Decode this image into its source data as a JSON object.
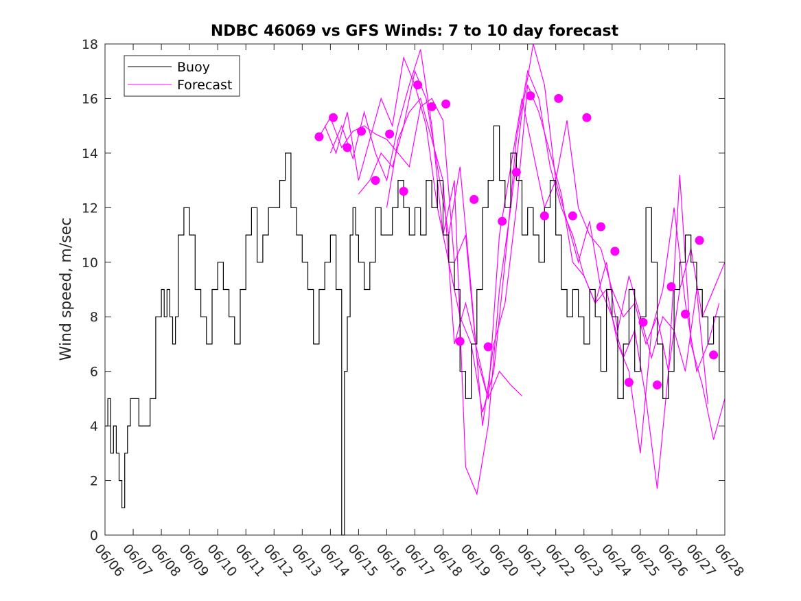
{
  "chart_data": {
    "type": "line",
    "title": "NDBC 46069 vs GFS Winds: 7 to 10 day forecast",
    "xlabel": "",
    "ylabel": "Wind speed, m/sec",
    "x_ticks": [
      "06/06",
      "06/07",
      "06/08",
      "06/09",
      "06/10",
      "06/11",
      "06/12",
      "06/13",
      "06/14",
      "06/15",
      "06/16",
      "06/17",
      "06/18",
      "06/19",
      "06/20",
      "06/21",
      "06/22",
      "06/23",
      "06/24",
      "06/25",
      "06/26",
      "06/27",
      "06/28"
    ],
    "xlim_days": [
      0,
      22
    ],
    "ylim": [
      0,
      18
    ],
    "y_ticks": [
      0,
      2,
      4,
      6,
      8,
      10,
      12,
      14,
      16,
      18
    ],
    "legend_position": "top-left",
    "colors": {
      "buoy": "#000000",
      "forecast": "#ff00ff",
      "axis": "#262626"
    },
    "series": [
      {
        "name": "Buoy",
        "style": "step-line",
        "x_days": [
          0.0,
          0.1,
          0.2,
          0.3,
          0.4,
          0.5,
          0.6,
          0.7,
          0.8,
          0.9,
          1.0,
          1.2,
          1.4,
          1.6,
          1.8,
          2.0,
          2.1,
          2.2,
          2.3,
          2.4,
          2.5,
          2.6,
          2.8,
          3.0,
          3.2,
          3.4,
          3.6,
          3.8,
          4.0,
          4.2,
          4.4,
          4.6,
          4.8,
          5.0,
          5.2,
          5.4,
          5.6,
          5.8,
          6.0,
          6.2,
          6.4,
          6.6,
          6.8,
          7.0,
          7.2,
          7.4,
          7.6,
          7.8,
          8.0,
          8.2,
          8.4,
          8.5,
          8.6,
          8.7,
          8.8,
          8.9,
          9.0,
          9.2,
          9.4,
          9.6,
          9.8,
          10.0,
          10.2,
          10.4,
          10.6,
          10.8,
          11.0,
          11.2,
          11.4,
          11.6,
          11.8,
          12.0,
          12.2,
          12.4,
          12.6,
          12.8,
          13.0,
          13.2,
          13.4,
          13.6,
          13.8,
          14.0,
          14.2,
          14.4,
          14.6,
          14.8,
          15.0,
          15.2,
          15.4,
          15.6,
          15.8,
          16.0,
          16.2,
          16.4,
          16.6,
          16.8,
          17.0,
          17.2,
          17.4,
          17.6,
          17.8,
          18.0,
          18.2,
          18.4,
          18.6,
          18.8,
          19.0,
          19.2,
          19.4,
          19.6,
          19.8,
          20.0,
          20.2,
          20.4,
          20.6,
          20.8,
          21.0,
          21.2,
          21.4,
          21.6,
          21.8,
          22.0
        ],
        "values": [
          4,
          5,
          3,
          4,
          3,
          2,
          1,
          3,
          4,
          5,
          5,
          4,
          4,
          5,
          8,
          9,
          8,
          9,
          8,
          7,
          8,
          11,
          12,
          11,
          9,
          8,
          7,
          9,
          10,
          9,
          8,
          7,
          9,
          11,
          12,
          10,
          11,
          12,
          12,
          13,
          14,
          12,
          11,
          10,
          9,
          7,
          9,
          10,
          11,
          9,
          0,
          6,
          8,
          11,
          12,
          11,
          10,
          9,
          10,
          12,
          11,
          11,
          12,
          13,
          12,
          11,
          12,
          11,
          13,
          12,
          13,
          11,
          10,
          9,
          6,
          5,
          7,
          9,
          12,
          13,
          15,
          13,
          12,
          14,
          13,
          11,
          12,
          11,
          10,
          12,
          13,
          11,
          9,
          8,
          9,
          8,
          7,
          9,
          8,
          6,
          9,
          8,
          5,
          7,
          9,
          6,
          8,
          12,
          10,
          7,
          5,
          6,
          9,
          10,
          11,
          10,
          9,
          8,
          7,
          8,
          6,
          9
        ]
      },
      {
        "name": "Forecast",
        "style": "multiple-ensemble-lines",
        "runs": [
          {
            "x_days": [
              7.6,
              8.0,
              8.4,
              8.8,
              9.2,
              9.6,
              10.0,
              10.4,
              10.8,
              11.2,
              11.6,
              12.0,
              12.4,
              12.8,
              13.2,
              13.6,
              14.0,
              14.4,
              14.8,
              15.2,
              15.6,
              16.0,
              16.4,
              16.8,
              17.2,
              17.6,
              18.0,
              18.4,
              18.8,
              19.2,
              19.6,
              20.0,
              20.4,
              20.8,
              21.2,
              21.6,
              22.0
            ],
            "values": [
              14.6,
              15.3,
              14.2,
              14.8,
              15.0,
              14.7,
              14.5,
              14.0,
              13.5,
              15.7,
              16.0,
              15.2,
              10.0,
              11.0,
              6.5,
              5.0,
              11.0,
              13.5,
              16.0,
              14.0,
              12.0,
              13.0,
              15.2,
              12.0,
              11.0,
              10.5,
              9.0,
              8.0,
              8.5,
              7.0,
              8.0,
              6.0,
              9.0,
              10.5,
              8.0,
              9.0,
              10.0
            ]
          },
          {
            "x_days": [
              7.8,
              8.2,
              8.6,
              9.0,
              9.4,
              9.8,
              10.2,
              10.6,
              11.0,
              11.4,
              11.8,
              12.2,
              12.6,
              13.0,
              13.4,
              13.8,
              14.2,
              14.6,
              15.0,
              15.4,
              15.8,
              16.2,
              16.6,
              17.0,
              17.4,
              17.8,
              18.2,
              18.6,
              19.0,
              19.4,
              19.8,
              20.2,
              20.6,
              21.0,
              21.4,
              21.8
            ],
            "values": [
              15.0,
              14.0,
              15.5,
              13.0,
              14.5,
              16.0,
              15.0,
              17.5,
              16.5,
              15.0,
              12.0,
              10.0,
              8.0,
              7.0,
              4.5,
              6.0,
              10.0,
              14.5,
              17.0,
              16.0,
              13.5,
              12.0,
              11.0,
              9.5,
              8.5,
              9.0,
              7.0,
              6.0,
              3.0,
              7.5,
              9.0,
              12.0,
              8.5,
              6.0,
              7.0,
              8.5
            ]
          },
          {
            "x_days": [
              8.0,
              8.4,
              8.8,
              9.2,
              9.6,
              10.0,
              10.4,
              10.8,
              11.2,
              11.6,
              12.0,
              12.4,
              12.8,
              13.2,
              13.6,
              14.0,
              14.4,
              14.8,
              15.2,
              15.6,
              16.0,
              16.4,
              16.8,
              17.2,
              17.6,
              18.0,
              18.4,
              18.8,
              19.2,
              19.6,
              20.0,
              20.4,
              20.8,
              21.2,
              21.6,
              22.0
            ],
            "values": [
              14.0,
              15.0,
              13.8,
              15.5,
              14.0,
              13.0,
              15.0,
              16.5,
              17.8,
              15.0,
              11.0,
              13.0,
              2.5,
              1.5,
              4.0,
              9.0,
              12.0,
              15.5,
              18.0,
              16.5,
              13.0,
              11.5,
              10.0,
              11.5,
              9.0,
              8.0,
              6.5,
              7.5,
              5.0,
              1.7,
              6.0,
              13.2,
              7.0,
              5.5,
              3.5,
              5.0
            ]
          },
          {
            "x_days": [
              9.0,
              9.4,
              9.8,
              10.2,
              10.6,
              11.0,
              11.4,
              11.8,
              12.2,
              12.6,
              13.0,
              13.4,
              13.8,
              14.2,
              14.6,
              15.0,
              15.4,
              15.8,
              16.2,
              16.6,
              17.0,
              17.4,
              17.8,
              18.2,
              18.6,
              19.0,
              19.4,
              19.8,
              20.2,
              20.6,
              21.0,
              21.4
            ],
            "values": [
              12.5,
              13.0,
              14.0,
              13.5,
              15.0,
              17.0,
              16.0,
              13.5,
              11.0,
              13.5,
              9.0,
              4.0,
              7.0,
              8.5,
              12.0,
              16.5,
              15.5,
              14.0,
              12.5,
              10.0,
              9.5,
              8.5,
              10.0,
              7.5,
              9.5,
              8.0,
              6.5,
              8.0,
              7.5,
              6.0,
              9.0,
              4.8
            ]
          },
          {
            "x_days": [
              10.0,
              10.4,
              10.8,
              11.2,
              11.6,
              12.0,
              12.4,
              12.8,
              13.2,
              13.6,
              14.0,
              14.4,
              14.8
            ],
            "values": [
              12.0,
              14.5,
              15.5,
              16.0,
              14.5,
              13.0,
              7.0,
              8.5,
              6.8,
              5.0,
              6.0,
              5.5,
              5.1
            ]
          }
        ]
      }
    ],
    "forecast_markers": {
      "x_days": [
        7.6,
        8.1,
        8.6,
        9.1,
        9.6,
        10.1,
        10.6,
        11.1,
        11.6,
        12.1,
        12.6,
        13.1,
        13.6,
        14.1,
        14.6,
        15.1,
        15.6,
        16.1,
        16.6,
        17.1,
        17.6,
        18.1,
        18.6,
        19.1,
        19.6,
        20.1,
        20.6,
        21.1,
        21.6
      ],
      "values": [
        14.6,
        15.3,
        14.2,
        14.8,
        13.0,
        14.7,
        12.6,
        16.5,
        15.7,
        15.8,
        7.1,
        12.3,
        6.9,
        11.5,
        13.3,
        16.1,
        11.7,
        16.0,
        11.7,
        15.3,
        11.3,
        10.4,
        5.6,
        7.8,
        5.5,
        9.1,
        8.1,
        10.8,
        6.6
      ]
    }
  }
}
